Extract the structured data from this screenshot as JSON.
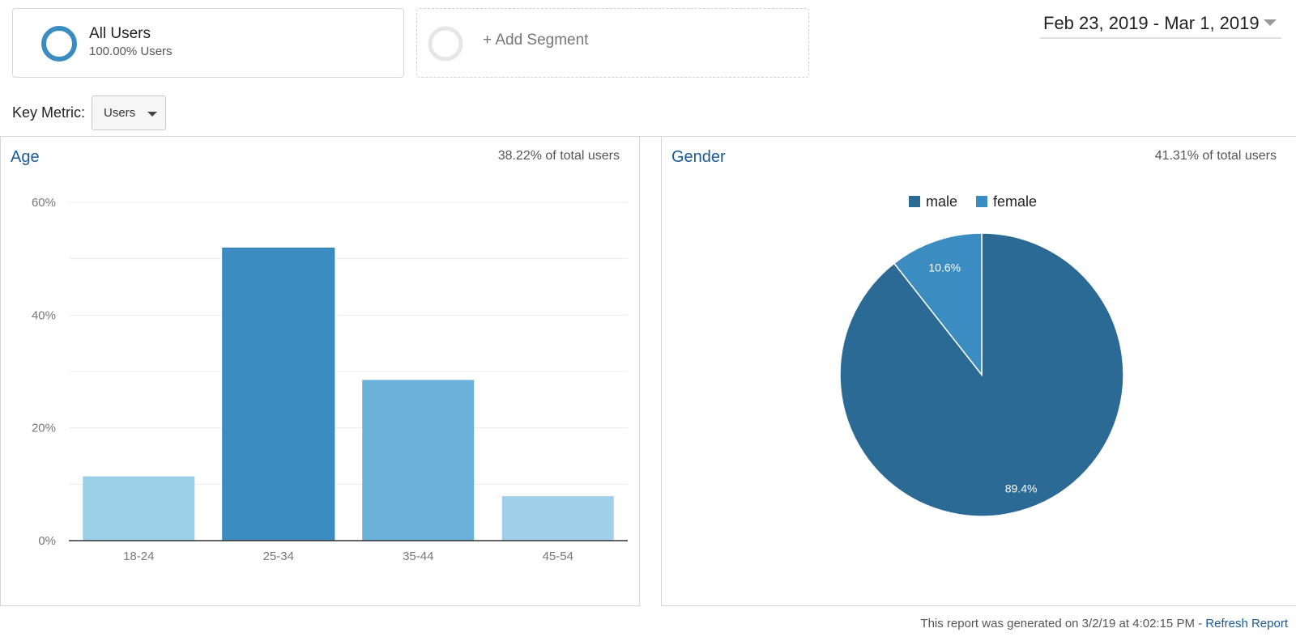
{
  "segments": {
    "all_users": {
      "title": "All Users",
      "subtitle": "100.00% Users"
    },
    "add_segment": {
      "label": "+ Add Segment"
    }
  },
  "date_range": {
    "label": "Feb 23, 2019 - Mar 1, 2019"
  },
  "key_metric": {
    "label": "Key Metric:",
    "value": "Users"
  },
  "age": {
    "title": "Age",
    "share": "38.22% of total users"
  },
  "gender": {
    "title": "Gender",
    "share": "41.31% of total users"
  },
  "footer": {
    "text": "This report was generated on 3/2/19 at 4:02:15 PM - ",
    "refresh": "Refresh Report"
  },
  "colors": {
    "accent": "#1a5a96",
    "male": "#2b6a94",
    "female": "#3a8cc1"
  },
  "chart_data": [
    {
      "type": "bar",
      "categories": [
        "18-24",
        "25-34",
        "35-44",
        "45-54"
      ],
      "values": [
        11.4,
        51.9,
        28.5,
        7.9
      ],
      "colors": [
        "#9bcfe8",
        "#3a8cc1",
        "#69b1d9",
        "#a1d1ea"
      ],
      "ylim": [
        0,
        60
      ],
      "yticks": [
        0,
        20,
        40,
        60
      ],
      "ytick_labels": [
        "0%",
        "20%",
        "40%",
        "60%"
      ],
      "grid": true
    },
    {
      "type": "pie",
      "labels": [
        "male",
        "female"
      ],
      "values": [
        89.4,
        10.6
      ],
      "value_labels": [
        "89.4%",
        "10.6%"
      ],
      "colors": [
        "#2b6a94",
        "#3a8cc1"
      ],
      "legend": "top"
    }
  ]
}
